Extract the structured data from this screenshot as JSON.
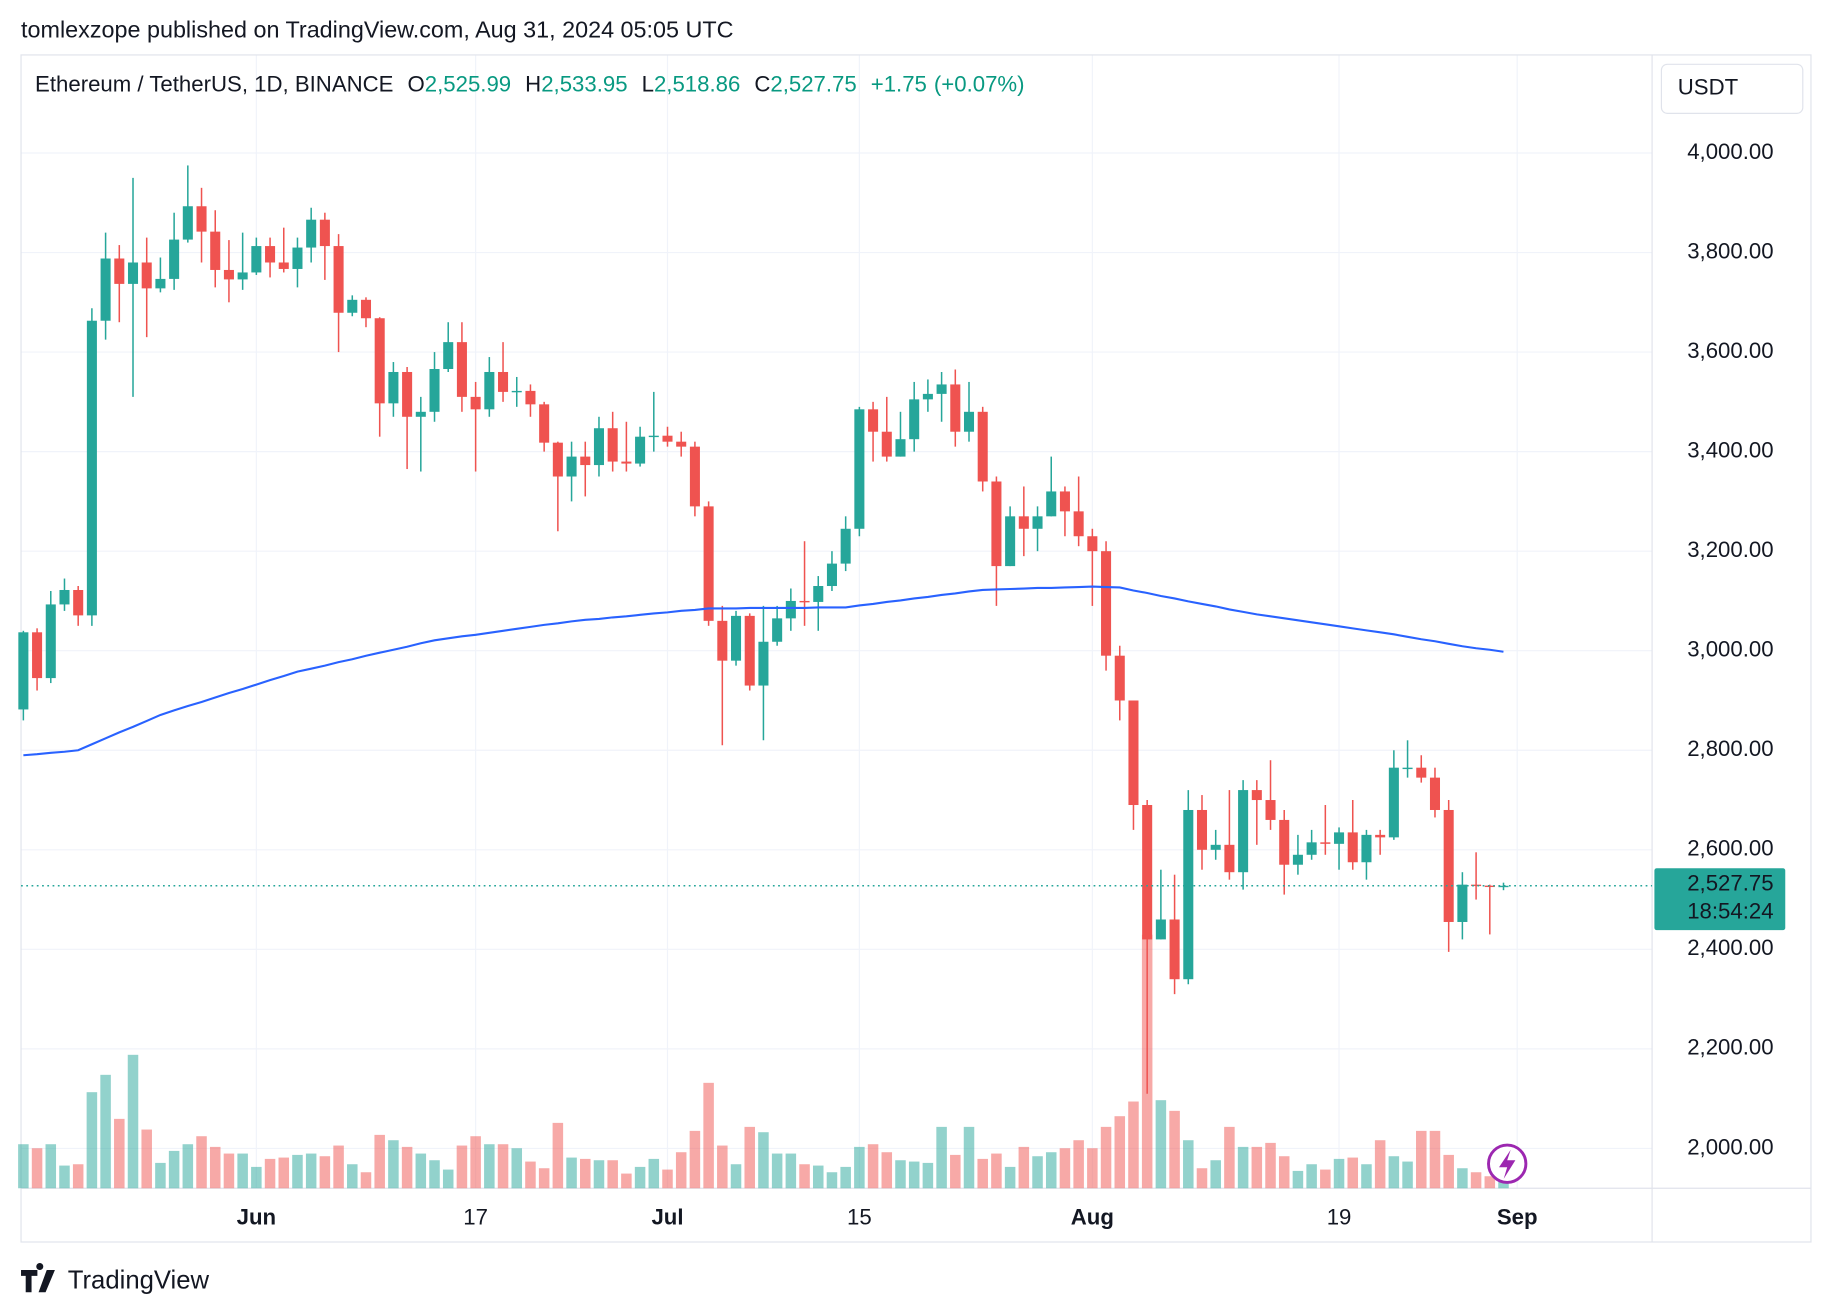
{
  "header": {
    "attribution": "tomlexzope published on TradingView.com, Aug 31, 2024 05:05 UTC",
    "symbol": "Ethereum / TetherUS, 1D, BINANCE",
    "ohlc": [
      {
        "key": "O",
        "value": {
          "value": 2525.99,
          "label": "2,525.99"
        }
      },
      {
        "key": "H",
        "value": {
          "value": 2533.95,
          "label": "2,533.95"
        }
      },
      {
        "key": "L",
        "value": {
          "value": 2518.86,
          "label": "2,518.86"
        }
      },
      {
        "key": "C",
        "value": {
          "value": 2527.75,
          "label": "2,527.75"
        }
      }
    ],
    "change": {
      "value": 1.75,
      "label": "+1.75"
    },
    "change_pct": {
      "value": 0.07,
      "label": "(+0.07%)"
    },
    "brand": "TradingView"
  },
  "chart_data": {
    "type": "candlestick",
    "currency": "USDT",
    "up_color": "#26a69a",
    "down_color": "#ef5350",
    "categories": [
      "2024-05-15",
      "2024-05-16",
      "2024-05-17",
      "2024-05-18",
      "2024-05-19",
      "2024-05-20",
      "2024-05-21",
      "2024-05-22",
      "2024-05-23",
      "2024-05-24",
      "2024-05-25",
      "2024-05-26",
      "2024-05-27",
      "2024-05-28",
      "2024-05-29",
      "2024-05-30",
      "2024-05-31",
      "2024-06-01",
      "2024-06-02",
      "2024-06-03",
      "2024-06-04",
      "2024-06-05",
      "2024-06-06",
      "2024-06-07",
      "2024-06-08",
      "2024-06-09",
      "2024-06-10",
      "2024-06-11",
      "2024-06-12",
      "2024-06-13",
      "2024-06-14",
      "2024-06-15",
      "2024-06-16",
      "2024-06-17",
      "2024-06-18",
      "2024-06-19",
      "2024-06-20",
      "2024-06-21",
      "2024-06-22",
      "2024-06-23",
      "2024-06-24",
      "2024-06-25",
      "2024-06-26",
      "2024-06-27",
      "2024-06-28",
      "2024-06-29",
      "2024-06-30",
      "2024-07-01",
      "2024-07-02",
      "2024-07-03",
      "2024-07-04",
      "2024-07-05",
      "2024-07-06",
      "2024-07-07",
      "2024-07-08",
      "2024-07-09",
      "2024-07-10",
      "2024-07-11",
      "2024-07-12",
      "2024-07-13",
      "2024-07-14",
      "2024-07-15",
      "2024-07-16",
      "2024-07-17",
      "2024-07-18",
      "2024-07-19",
      "2024-07-20",
      "2024-07-21",
      "2024-07-22",
      "2024-07-23",
      "2024-07-24",
      "2024-07-25",
      "2024-07-26",
      "2024-07-27",
      "2024-07-28",
      "2024-07-29",
      "2024-07-30",
      "2024-07-31",
      "2024-08-01",
      "2024-08-02",
      "2024-08-03",
      "2024-08-04",
      "2024-08-05",
      "2024-08-06",
      "2024-08-07",
      "2024-08-08",
      "2024-08-09",
      "2024-08-10",
      "2024-08-11",
      "2024-08-12",
      "2024-08-13",
      "2024-08-14",
      "2024-08-15",
      "2024-08-16",
      "2024-08-17",
      "2024-08-18",
      "2024-08-19",
      "2024-08-20",
      "2024-08-21",
      "2024-08-22",
      "2024-08-23",
      "2024-08-24",
      "2024-08-25",
      "2024-08-26",
      "2024-08-27",
      "2024-08-28",
      "2024-08-29",
      "2024-08-30",
      "2024-08-31"
    ],
    "open": [
      2882,
      3037,
      2945,
      3093,
      3122,
      3071,
      3663,
      3788,
      3737,
      3780,
      3728,
      3747,
      3826,
      3893,
      3842,
      3765,
      3746,
      3760,
      3813,
      3780,
      3767,
      3810,
      3866,
      3813,
      3679,
      3705,
      3668,
      3497,
      3560,
      3470,
      3480,
      3566,
      3620,
      3510,
      3485,
      3560,
      3520,
      3522,
      3495,
      3418,
      3350,
      3390,
      3373,
      3447,
      3380,
      3376,
      3430,
      3432,
      3420,
      3410,
      3290,
      3060,
      2980,
      3070,
      2930,
      3018,
      3065,
      3100,
      3098,
      3130,
      3175,
      3245,
      3485,
      3440,
      3390,
      3425,
      3505,
      3516,
      3535,
      3440,
      3480,
      3340,
      3170,
      3270,
      3245,
      3270,
      3320,
      3280,
      3230,
      3200,
      2990,
      2900,
      2690,
      2420,
      2460,
      2340,
      2680,
      2600,
      2610,
      2555,
      2720,
      2700,
      2660,
      2570,
      2590,
      2615,
      2612,
      2635,
      2575,
      2630,
      2625,
      2765,
      2765,
      2745,
      2680,
      2455,
      2530,
      2528,
      2525.99
    ],
    "high": [
      3040,
      3045,
      3120,
      3145,
      3130,
      3688,
      3840,
      3815,
      3950,
      3830,
      3790,
      3880,
      3975,
      3930,
      3885,
      3825,
      3840,
      3830,
      3830,
      3850,
      3830,
      3890,
      3880,
      3837,
      3714,
      3710,
      3670,
      3580,
      3570,
      3510,
      3600,
      3660,
      3660,
      3540,
      3590,
      3620,
      3550,
      3535,
      3500,
      3420,
      3420,
      3420,
      3470,
      3480,
      3460,
      3450,
      3520,
      3450,
      3440,
      3420,
      3300,
      3090,
      3080,
      3075,
      3090,
      3090,
      3125,
      3220,
      3150,
      3200,
      3270,
      3490,
      3500,
      3510,
      3480,
      3540,
      3545,
      3560,
      3565,
      3540,
      3490,
      3350,
      3290,
      3330,
      3290,
      3390,
      3330,
      3350,
      3245,
      3220,
      3010,
      2900,
      2700,
      2560,
      2550,
      2720,
      2710,
      2640,
      2720,
      2740,
      2740,
      2780,
      2680,
      2630,
      2640,
      2690,
      2645,
      2700,
      2640,
      2640,
      2800,
      2820,
      2790,
      2765,
      2700,
      2555,
      2595,
      2530,
      2533.95
    ],
    "low": [
      2860,
      2920,
      2935,
      3080,
      3050,
      3050,
      3625,
      3660,
      3510,
      3630,
      3720,
      3725,
      3820,
      3780,
      3730,
      3700,
      3725,
      3755,
      3750,
      3760,
      3730,
      3780,
      3745,
      3600,
      3672,
      3650,
      3430,
      3470,
      3365,
      3360,
      3460,
      3560,
      3480,
      3360,
      3470,
      3500,
      3490,
      3470,
      3400,
      3240,
      3300,
      3310,
      3350,
      3360,
      3360,
      3370,
      3400,
      3410,
      3390,
      3270,
      3050,
      2810,
      2970,
      2920,
      2820,
      3010,
      3040,
      3050,
      3040,
      3120,
      3160,
      3230,
      3380,
      3380,
      3390,
      3400,
      3480,
      3460,
      3410,
      3420,
      3320,
      3090,
      3170,
      3190,
      3200,
      3270,
      3230,
      3210,
      3090,
      2960,
      2860,
      2640,
      2110,
      2420,
      2310,
      2330,
      2560,
      2580,
      2540,
      2520,
      2610,
      2640,
      2510,
      2550,
      2580,
      2590,
      2560,
      2560,
      2540,
      2590,
      2620,
      2745,
      2735,
      2665,
      2395,
      2420,
      2500,
      2430,
      2518.86
    ],
    "close": [
      3037,
      2945,
      3093,
      3122,
      3071,
      3663,
      3788,
      3737,
      3780,
      3728,
      3747,
      3826,
      3893,
      3842,
      3765,
      3746,
      3760,
      3813,
      3780,
      3767,
      3810,
      3866,
      3813,
      3679,
      3705,
      3668,
      3497,
      3560,
      3470,
      3480,
      3566,
      3620,
      3510,
      3485,
      3560,
      3520,
      3522,
      3495,
      3418,
      3350,
      3390,
      3373,
      3447,
      3380,
      3376,
      3430,
      3432,
      3420,
      3410,
      3290,
      3060,
      2980,
      3070,
      2930,
      3018,
      3065,
      3100,
      3098,
      3130,
      3175,
      3245,
      3485,
      3440,
      3390,
      3425,
      3505,
      3516,
      3535,
      3440,
      3480,
      3340,
      3170,
      3270,
      3245,
      3270,
      3320,
      3280,
      3230,
      3200,
      2990,
      2900,
      2690,
      2420,
      2460,
      2340,
      2680,
      2600,
      2610,
      2555,
      2720,
      2700,
      2660,
      2570,
      2590,
      2615,
      2612,
      2635,
      2575,
      2630,
      2625,
      2765,
      2765,
      2745,
      2680,
      2455,
      2530,
      2528,
      2526,
      2527.75
    ],
    "volume": [
      330,
      300,
      330,
      170,
      180,
      720,
      850,
      520,
      1000,
      440,
      190,
      280,
      330,
      390,
      310,
      260,
      260,
      160,
      220,
      230,
      250,
      260,
      240,
      320,
      180,
      120,
      400,
      360,
      310,
      260,
      210,
      140,
      320,
      390,
      330,
      330,
      300,
      200,
      150,
      490,
      230,
      220,
      210,
      210,
      110,
      160,
      220,
      140,
      270,
      430,
      790,
      320,
      180,
      460,
      420,
      260,
      260,
      180,
      170,
      120,
      160,
      310,
      330,
      270,
      210,
      200,
      190,
      460,
      250,
      460,
      220,
      260,
      160,
      310,
      240,
      270,
      300,
      360,
      300,
      460,
      540,
      650,
      1900,
      660,
      580,
      360,
      150,
      210,
      460,
      310,
      310,
      340,
      240,
      130,
      180,
      140,
      220,
      230,
      180,
      360,
      240,
      200,
      430,
      430,
      250,
      150,
      120,
      90,
      60
    ],
    "ma": {
      "color": "#2962ff",
      "values": [
        2790,
        2792,
        2795,
        2797,
        2800,
        2812,
        2824,
        2836,
        2847,
        2859,
        2871,
        2880,
        2889,
        2897,
        2906,
        2915,
        2923,
        2932,
        2941,
        2949,
        2958,
        2964,
        2970,
        2977,
        2983,
        2990,
        2996,
        3002,
        3008,
        3015,
        3021,
        3025,
        3029,
        3032,
        3036,
        3040,
        3044,
        3048,
        3052,
        3055,
        3059,
        3062,
        3064,
        3067,
        3069,
        3072,
        3075,
        3077,
        3080,
        3082,
        3085,
        3085,
        3085,
        3086,
        3086,
        3086,
        3086,
        3086,
        3087,
        3087,
        3087,
        3091,
        3094,
        3098,
        3101,
        3105,
        3108,
        3112,
        3115,
        3119,
        3122,
        3123,
        3124,
        3125,
        3126,
        3126,
        3127,
        3128,
        3129,
        3128,
        3127,
        3121,
        3116,
        3110,
        3105,
        3099,
        3094,
        3089,
        3083,
        3078,
        3073,
        3069,
        3065,
        3061,
        3057,
        3053,
        3049,
        3045,
        3041,
        3037,
        3033,
        3028,
        3023,
        3019,
        3014,
        3009,
        3005,
        3002,
        2998
      ]
    },
    "ylim": [
      1920,
      4197
    ],
    "yticks": [
      {
        "value": 2000,
        "label": "2,000.00"
      },
      {
        "value": 2200,
        "label": "2,200.00"
      },
      {
        "value": 2400,
        "label": "2,400.00"
      },
      {
        "value": 2600,
        "label": "2,600.00"
      },
      {
        "value": 2800,
        "label": "2,800.00"
      },
      {
        "value": 3000,
        "label": "3,000.00"
      },
      {
        "value": 3200,
        "label": "3,200.00"
      },
      {
        "value": 3400,
        "label": "3,400.00"
      },
      {
        "value": 3600,
        "label": "3,600.00"
      },
      {
        "value": 3800,
        "label": "3,800.00"
      },
      {
        "value": 4000,
        "label": "4,000.00"
      }
    ],
    "xticks": [
      {
        "value": "2024-06-01",
        "label": "Jun"
      },
      {
        "value": "2024-06-17",
        "label": "17"
      },
      {
        "value": "2024-07-01",
        "label": "Jul"
      },
      {
        "value": "2024-07-15",
        "label": "15"
      },
      {
        "value": "2024-08-01",
        "label": "Aug"
      },
      {
        "value": "2024-08-19",
        "label": "19"
      },
      {
        "value": "2024-09-01",
        "label": "Sep"
      }
    ],
    "last_price": {
      "value": 2527.75,
      "label": "2,527.75"
    },
    "countdown": "18:54:24"
  }
}
